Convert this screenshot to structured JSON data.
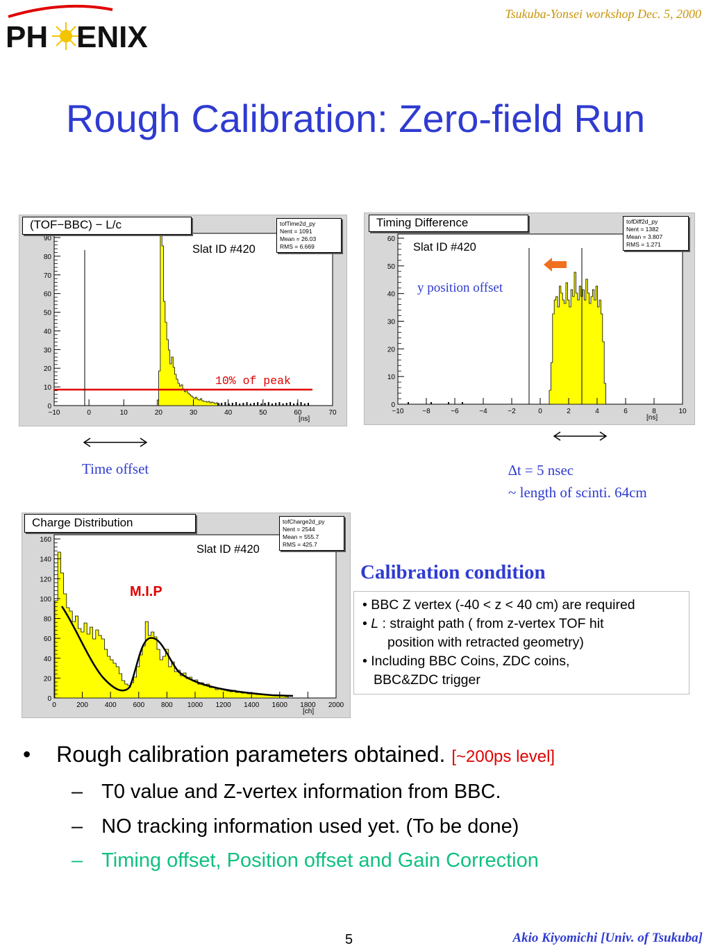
{
  "header": {
    "logo_text": "PHENIX",
    "workshop": "Tsukuba-Yonsei workshop  Dec. 5, 2000"
  },
  "title": "Rough Calibration: Zero-field Run",
  "histograms": {
    "tof": {
      "title": "(TOF−BBC) − L/c",
      "stats_name": "tofTime2d_py",
      "stats": [
        "Nent = 1091",
        "Mean  =  26.03",
        "RMS   =  6.669"
      ],
      "slat": "Slat ID #420",
      "annotation": "10% of peak",
      "unit": "[ns]",
      "x_ticks": [
        "−10",
        "0",
        "10",
        "20",
        "30",
        "40",
        "50",
        "60",
        "70"
      ],
      "y_ticks": [
        "0",
        "10",
        "20",
        "30",
        "40",
        "50",
        "60",
        "70",
        "80",
        "90"
      ]
    },
    "diff": {
      "title": "Timing Difference",
      "stats_name": "tofDiff2d_py",
      "stats": [
        "Nent = 1382",
        "Mean  =  3.807",
        "RMS   =  1.271"
      ],
      "slat": "Slat ID #420",
      "annotation": "y position offset",
      "unit": "[ns]",
      "x_ticks": [
        "−10",
        "−8",
        "−6",
        "−4",
        "−2",
        "0",
        "2",
        "4",
        "6",
        "8",
        "10"
      ],
      "y_ticks": [
        "0",
        "10",
        "20",
        "30",
        "40",
        "50",
        "60"
      ]
    },
    "charge": {
      "title": "Charge Distribution",
      "stats_name": "tofCharge2d_py",
      "stats": [
        "Nent = 2544",
        "Mean  =  555.7",
        "RMS   =  425.7"
      ],
      "slat": "Slat ID #420",
      "annotation": "M.I.P",
      "unit": "[ch]",
      "x_ticks": [
        "0",
        "200",
        "400",
        "600",
        "800",
        "1000",
        "1200",
        "1400",
        "1600",
        "1800",
        "2000"
      ],
      "y_ticks": [
        "0",
        "20",
        "40",
        "60",
        "80",
        "100",
        "120",
        "140",
        "160"
      ]
    }
  },
  "notes": {
    "time_offset": "Time offset",
    "dt_line1": "∆t = 5 nsec",
    "dt_line2": "~ length of scinti. 64cm"
  },
  "calibration": {
    "title": "Calibration condition",
    "item1": "• BBC Z vertex (-40 < z < 40 cm) are required",
    "item2_bullet": "• ",
    "item2_italic": "L",
    "item2_rest": " : straight  path ( from z-vertex TOF hit",
    "item2_cont": "position with retracted geometry)",
    "item3": "• Including BBC Coins, ZDC coins,",
    "item3_cont": "BBC&ZDC trigger"
  },
  "bullets": {
    "main_marker": "•",
    "main": "Rough calibration parameters obtained.",
    "main_note": "[~200ps level]",
    "dash": "–",
    "sub1": "T0 value and Z-vertex information from BBC.",
    "sub2": "NO tracking information used yet. (To be done)",
    "sub3": "Timing offset, Position offset and Gain Correction"
  },
  "footer": {
    "page": "5",
    "author": "Akio Kiyomichi [Univ. of Tsukuba]"
  },
  "colors": {
    "title_blue": "#2f3bd0",
    "header_gold": "#c8940a",
    "hist_fill": "#ffff00",
    "highlight_red": "#e00000",
    "sub_green": "#10c080",
    "arrow_orange": "#f07020"
  }
}
